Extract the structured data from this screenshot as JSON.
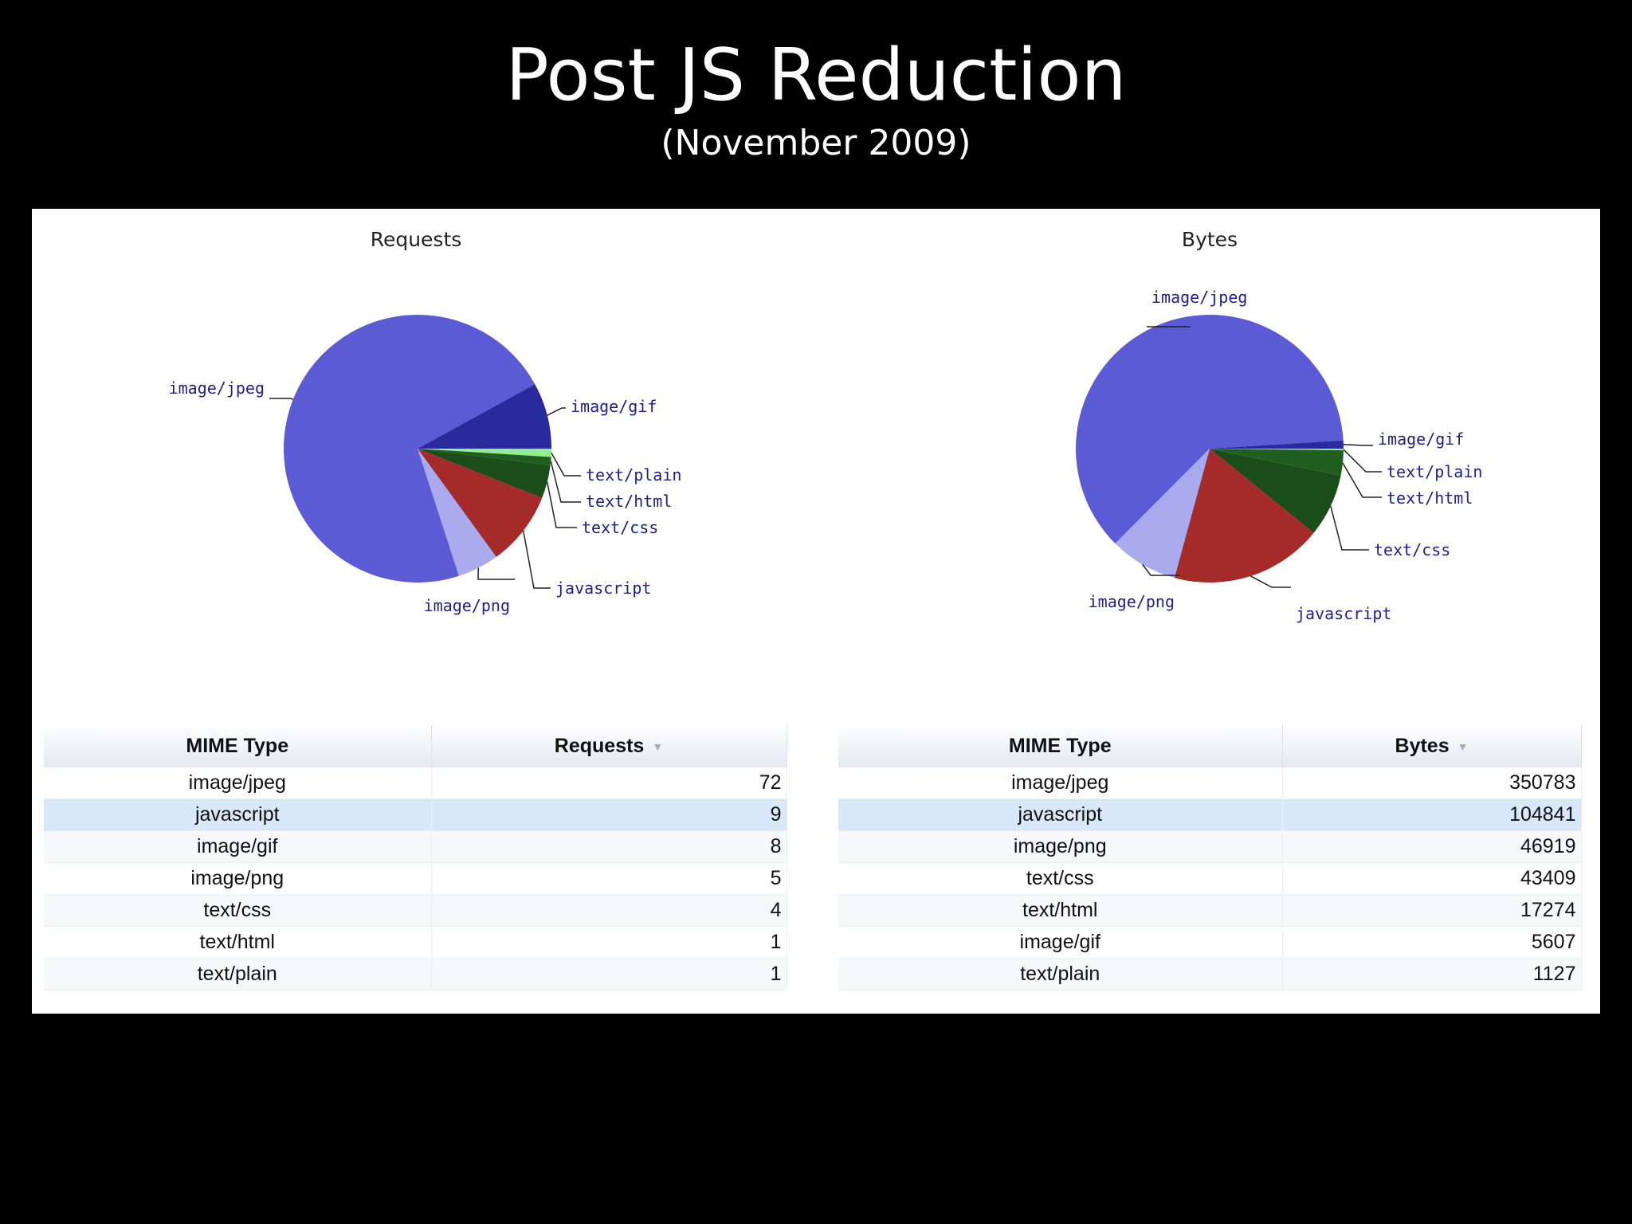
{
  "slide": {
    "title": "Post JS Reduction",
    "subtitle": "(November 2009)"
  },
  "colors": {
    "image/jpeg": "#5b5bd6",
    "image/gif": "#2a2a9c",
    "text/plain": "#90ee90",
    "text/html": "#1f5e1f",
    "text/css": "#1a4d1a",
    "javascript": "#a52a2a",
    "image/png": "#aaaaee",
    "label_text": "#1e1e8c"
  },
  "chart_data": [
    {
      "type": "pie",
      "title": "Requests",
      "slices": [
        {
          "label": "image/jpeg",
          "value": 72
        },
        {
          "label": "javascript",
          "value": 9
        },
        {
          "label": "image/gif",
          "value": 8
        },
        {
          "label": "image/png",
          "value": 5
        },
        {
          "label": "text/css",
          "value": 4
        },
        {
          "label": "text/html",
          "value": 1
        },
        {
          "label": "text/plain",
          "value": 1
        }
      ]
    },
    {
      "type": "pie",
      "title": "Bytes",
      "slices": [
        {
          "label": "image/jpeg",
          "value": 350783
        },
        {
          "label": "javascript",
          "value": 104841
        },
        {
          "label": "image/png",
          "value": 46919
        },
        {
          "label": "text/css",
          "value": 43409
        },
        {
          "label": "text/html",
          "value": 17274
        },
        {
          "label": "image/gif",
          "value": 5607
        },
        {
          "label": "text/plain",
          "value": 1127
        }
      ]
    }
  ],
  "tables": {
    "requests": {
      "headers": {
        "type": "MIME Type",
        "value": "Requests",
        "sort_glyph": "▼"
      },
      "rows": [
        {
          "type": "image/jpeg",
          "value": "72"
        },
        {
          "type": "javascript",
          "value": "9"
        },
        {
          "type": "image/gif",
          "value": "8"
        },
        {
          "type": "image/png",
          "value": "5"
        },
        {
          "type": "text/css",
          "value": "4"
        },
        {
          "type": "text/html",
          "value": "1"
        },
        {
          "type": "text/plain",
          "value": "1"
        }
      ]
    },
    "bytes": {
      "headers": {
        "type": "MIME Type",
        "value": "Bytes",
        "sort_glyph": "▼"
      },
      "rows": [
        {
          "type": "image/jpeg",
          "value": "350783"
        },
        {
          "type": "javascript",
          "value": "104841"
        },
        {
          "type": "image/png",
          "value": "46919"
        },
        {
          "type": "text/css",
          "value": "43409"
        },
        {
          "type": "text/html",
          "value": "17274"
        },
        {
          "type": "image/gif",
          "value": "5607"
        },
        {
          "type": "text/plain",
          "value": "1127"
        }
      ]
    }
  }
}
